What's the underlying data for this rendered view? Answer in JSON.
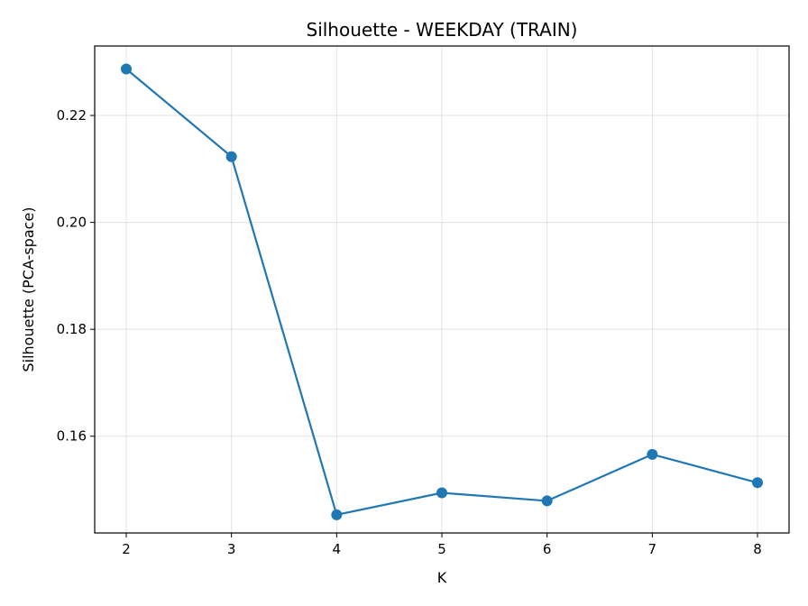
{
  "chart_data": {
    "type": "line",
    "title": "Silhouette - WEEKDAY (TRAIN)",
    "xlabel": "K",
    "ylabel": "Silhouette (PCA-space)",
    "x": [
      2,
      3,
      4,
      5,
      6,
      7,
      8
    ],
    "y": [
      0.2287,
      0.2123,
      0.1453,
      0.1494,
      0.1479,
      0.1566,
      0.1513
    ],
    "xticks": [
      "2",
      "3",
      "4",
      "5",
      "6",
      "7",
      "8"
    ],
    "yticks": [
      "0.16",
      "0.18",
      "0.20",
      "0.22"
    ],
    "xlim": [
      1.7,
      8.3
    ],
    "ylim": [
      0.1419,
      0.233
    ],
    "grid": true,
    "color": "#1f77b4"
  }
}
